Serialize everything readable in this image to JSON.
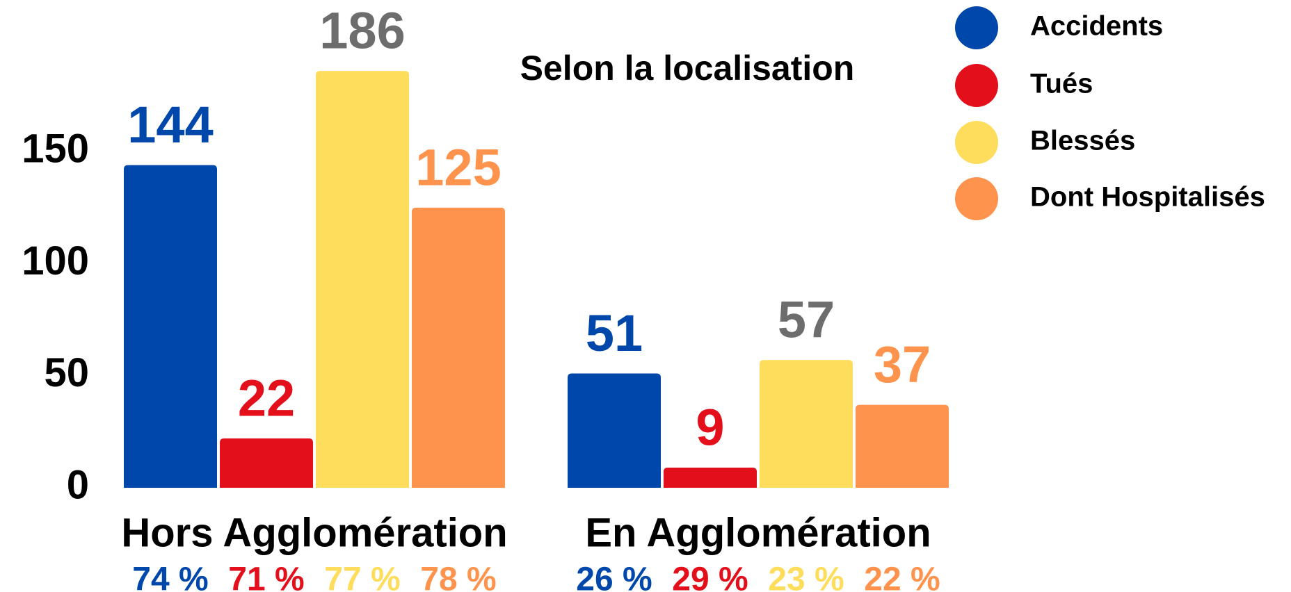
{
  "chart_data": {
    "type": "bar",
    "title": "Selon la localisation",
    "categories": [
      "Hors Agglomération",
      "En Agglomération"
    ],
    "series": [
      {
        "name": "Accidents",
        "color": "#0047ab",
        "label_color": "#0047ab",
        "values": [
          144,
          51
        ],
        "share_labels": [
          "74 %",
          "26 %"
        ]
      },
      {
        "name": "Tués",
        "color": "#e3101b",
        "label_color": "#e3101b",
        "values": [
          22,
          9
        ],
        "share_labels": [
          "71 %",
          "29 %"
        ]
      },
      {
        "name": "Blessés",
        "color": "#fedd5c",
        "label_color": "#6d6d6d",
        "values": [
          186,
          57
        ],
        "share_labels": [
          "77 %",
          "23 %"
        ]
      },
      {
        "name": "Dont Hospitalisés",
        "color": "#fe934d",
        "label_color": "#fe934d",
        "values": [
          125,
          37
        ],
        "share_labels": [
          "78 %",
          "22 %"
        ]
      }
    ],
    "ylim": [
      0,
      200
    ],
    "yticks": [
      0,
      50,
      100,
      150
    ],
    "grid": false,
    "legend": "top-right"
  }
}
